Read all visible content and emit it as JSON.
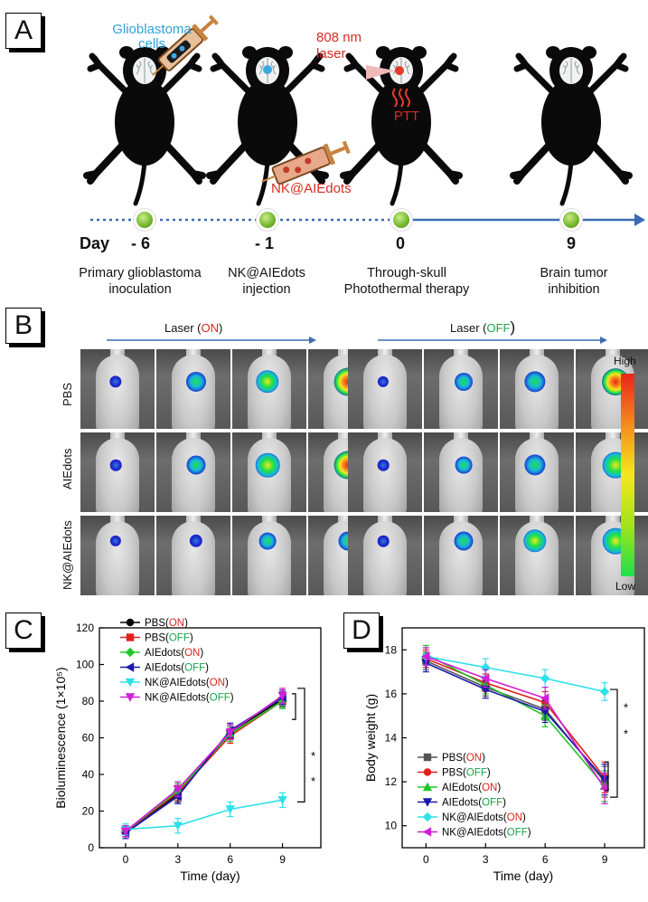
{
  "panel_labels": {
    "a": "A",
    "b": "B",
    "c": "C",
    "d": "D"
  },
  "panel_a": {
    "glioblastoma_label": "Glioblastoma\ncells",
    "laser_label": "808 nm\nlaser",
    "ptt_label": "PTT",
    "nk_label": "NK@AIEdots",
    "day_prefix": "Day",
    "timeline": [
      {
        "day": "- 6",
        "caption": "Primary glioblastoma\ninoculation"
      },
      {
        "day": "- 1",
        "caption": "NK@AIEdots\ninjection"
      },
      {
        "day": "0",
        "caption": "Through-skull\nPhotothermal therapy"
      },
      {
        "day": "9",
        "caption": "Brain tumor\ninhibition"
      }
    ]
  },
  "panel_b": {
    "laser_on_prefix": "Laser (",
    "laser_on_state": "ON",
    "laser_on_suffix": ")",
    "laser_off_prefix": "Laser (",
    "laser_off_state": "OFF",
    "laser_off_suffix": ")",
    "rows": [
      "PBS",
      "AIEdots",
      "NK@AIEdots"
    ],
    "colorbar_high": "High",
    "colorbar_low": "Low",
    "signal_levels": [
      [
        0.15,
        0.55,
        0.7,
        0.95,
        0.1,
        0.45,
        0.6,
        0.9
      ],
      [
        0.12,
        0.5,
        0.75,
        0.95,
        0.12,
        0.4,
        0.6,
        0.85
      ],
      [
        0.1,
        0.2,
        0.4,
        0.5,
        0.12,
        0.5,
        0.7,
        0.85
      ]
    ]
  },
  "colors": {
    "on": "#d9261c",
    "off": "#1aa34a",
    "axis": "#000",
    "timeline": "#3d6bb3"
  },
  "chart_data": [
    {
      "type": "line",
      "panel": "C",
      "xlabel": "Time (day)",
      "ylabel": "Bioluminescence (1×10⁵)",
      "x": [
        0,
        3,
        6,
        9
      ],
      "xticks": [
        "0",
        "3",
        "6",
        "9"
      ],
      "ylim": [
        0,
        120
      ],
      "yticks": [
        0,
        20,
        40,
        60,
        80,
        100,
        120
      ],
      "significance": [
        "*",
        "*"
      ],
      "series": [
        {
          "name": "PBS",
          "state": "ON",
          "color": "#000000",
          "marker": "circle",
          "values": [
            9,
            29,
            63,
            81
          ],
          "err": [
            3,
            4,
            4,
            4
          ]
        },
        {
          "name": "PBS",
          "state": "OFF",
          "color": "#e0201b",
          "marker": "square",
          "values": [
            9,
            30,
            61,
            80
          ],
          "err": [
            3,
            4,
            4,
            4
          ]
        },
        {
          "name": "AIEdots",
          "state": "ON",
          "color": "#22c52a",
          "marker": "diamond",
          "values": [
            9,
            31,
            62,
            80
          ],
          "err": [
            3,
            4,
            4,
            4
          ]
        },
        {
          "name": "AIEdots",
          "state": "OFF",
          "color": "#1c1aa8",
          "marker": "triangle-left",
          "values": [
            8,
            28,
            64,
            82
          ],
          "err": [
            3,
            4,
            4,
            4
          ]
        },
        {
          "name": "NK@AIEdots",
          "state": "ON",
          "color": "#2ee0e8",
          "marker": "triangle-down",
          "values": [
            10,
            12,
            21,
            26
          ],
          "err": [
            3,
            4,
            4,
            4
          ]
        },
        {
          "name": "NK@AIEdots",
          "state": "OFF",
          "color": "#d11fd6",
          "marker": "triangle-down",
          "values": [
            9,
            32,
            63,
            83
          ],
          "err": [
            3,
            4,
            4,
            4
          ]
        }
      ]
    },
    {
      "type": "line",
      "panel": "D",
      "xlabel": "Time (day)",
      "ylabel": "Body weight (g)",
      "x": [
        0,
        3,
        6,
        9
      ],
      "xticks": [
        "0",
        "3",
        "6",
        "9"
      ],
      "ylim": [
        9,
        19
      ],
      "yticks": [
        10,
        12,
        14,
        16,
        18
      ],
      "significance": [
        "*",
        "*"
      ],
      "series": [
        {
          "name": "PBS",
          "state": "ON",
          "color": "#555555",
          "marker": "square",
          "values": [
            17.5,
            16.3,
            15.3,
            12.0
          ],
          "err": [
            0.4,
            0.4,
            0.5,
            0.7
          ]
        },
        {
          "name": "PBS",
          "state": "OFF",
          "color": "#e0201b",
          "marker": "circle",
          "values": [
            17.6,
            16.5,
            15.6,
            12.2
          ],
          "err": [
            0.4,
            0.4,
            0.5,
            0.7
          ]
        },
        {
          "name": "AIEdots",
          "state": "ON",
          "color": "#22c52a",
          "marker": "triangle-up",
          "values": [
            17.8,
            16.4,
            15.0,
            11.8
          ],
          "err": [
            0.4,
            0.4,
            0.5,
            0.7
          ]
        },
        {
          "name": "AIEdots",
          "state": "OFF",
          "color": "#1c1aa8",
          "marker": "triangle-down",
          "values": [
            17.4,
            16.2,
            15.2,
            12.1
          ],
          "err": [
            0.4,
            0.4,
            0.5,
            0.7
          ]
        },
        {
          "name": "NK@AIEdots",
          "state": "ON",
          "color": "#2ee0e8",
          "marker": "diamond",
          "values": [
            17.7,
            17.2,
            16.7,
            16.1
          ],
          "err": [
            0.4,
            0.4,
            0.4,
            0.4
          ]
        },
        {
          "name": "NK@AIEdots",
          "state": "OFF",
          "color": "#d11fd6",
          "marker": "triangle-left",
          "values": [
            17.7,
            16.7,
            15.8,
            11.7
          ],
          "err": [
            0.4,
            0.4,
            0.5,
            0.7
          ]
        }
      ]
    }
  ]
}
